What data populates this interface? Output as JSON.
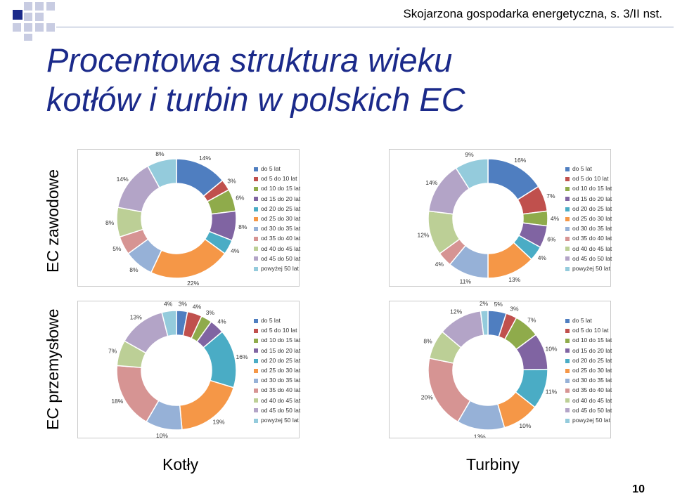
{
  "header": {
    "source": "Skojarzona gospodarka energetyczna, s. 3/II nst."
  },
  "title": {
    "line1": "Procentowa struktura wieku",
    "line2": "kotłów i turbin w polskich EC"
  },
  "rows": {
    "zawodowe": "EC zawodowe",
    "przemyslowe": "EC przemysłowe"
  },
  "columns": {
    "kotly": "Kotły",
    "turbiny": "Turbiny"
  },
  "page_number": "10",
  "colors": [
    "#4f7ec0",
    "#c0504d",
    "#8fab4b",
    "#8064a2",
    "#4aacc5",
    "#f59747",
    "#96b1d7",
    "#d69493",
    "#bccf96",
    "#b3a4c7",
    "#94cbdc"
  ],
  "chart_data": [
    {
      "type": "pie",
      "id": "kotly-zawodowe",
      "legend": [
        "do 5 lat",
        "od 5 do 10 lat",
        "od 10 do 15 lat",
        "od 15 do 20 lat",
        "od 20 do 25 lat",
        "od 25 do 30 lat",
        "od 30 do 35 lat",
        "od 35 do 40 lat",
        "od 40 do 45 lat",
        "od 45 do 50 lat",
        "powyżej 50 lat"
      ],
      "values": [
        14,
        3,
        6,
        8,
        4,
        22,
        8,
        5,
        8,
        14,
        8
      ],
      "labels": [
        "14%",
        "3%",
        "6%",
        "8%",
        "4%",
        "22%",
        "8%",
        "5%",
        "8%",
        "14%",
        "8%"
      ]
    },
    {
      "type": "pie",
      "id": "turbiny-zawodowe",
      "legend": [
        "do 5 lat",
        "od 5 do 10 lat",
        "od 10 do 15 lat",
        "od 15 do 20 lat",
        "od 20 do 25 lat",
        "od 25 do 30 lat",
        "od 30 do 35 lat",
        "od 35 do 40 lat",
        "od 40 do 45 lat",
        "od 45 do 50 lat",
        "powyżej 50 lat"
      ],
      "values": [
        16,
        7,
        4,
        6,
        4,
        13,
        11,
        4,
        12,
        14,
        9
      ],
      "labels": [
        "16%",
        "7%",
        "4%",
        "6%",
        "4%",
        "13%",
        "11%",
        "4%",
        "12%",
        "14%",
        "9%"
      ]
    },
    {
      "type": "pie",
      "id": "kotly-przemyslowe",
      "legend": [
        "do 5 lat",
        "od 5 do 10 lat",
        "od 10 do 15 lat",
        "od 15 do 20 lat",
        "od 20 do 25 lat",
        "od 25 do 30 lat",
        "od 30 do 35 lat",
        "od 35 do 40 lat",
        "od 40 do 45 lat",
        "od 45 do 50 lat",
        "powyżej 50 lat"
      ],
      "values": [
        3,
        4,
        3,
        4,
        16,
        19,
        10,
        18,
        7,
        13,
        4
      ],
      "labels": [
        "3%",
        "4%",
        "3%",
        "4%",
        "16%",
        "19%",
        "10%",
        "18%",
        "7%",
        "13%",
        "4%"
      ]
    },
    {
      "type": "pie",
      "id": "turbiny-przemyslowe",
      "legend": [
        "do 5 lat",
        "od 5 do 10 lat",
        "od 10 do 15 lat",
        "od 15 do 20 lat",
        "od 20 do 25 lat",
        "od 25 do 30 lat",
        "od 30 do 35 lat",
        "od 35 do 40 lat",
        "od 40 do 45 lat",
        "od 45 do 50 lat",
        "powyżej 50 lat"
      ],
      "values": [
        5,
        3,
        7,
        10,
        11,
        10,
        13,
        20,
        8,
        12,
        2
      ],
      "labels": [
        "5%",
        "3%",
        "7%",
        "10%",
        "11%",
        "10%",
        "13%",
        "20%",
        "8%",
        "12%",
        "2%"
      ]
    }
  ]
}
